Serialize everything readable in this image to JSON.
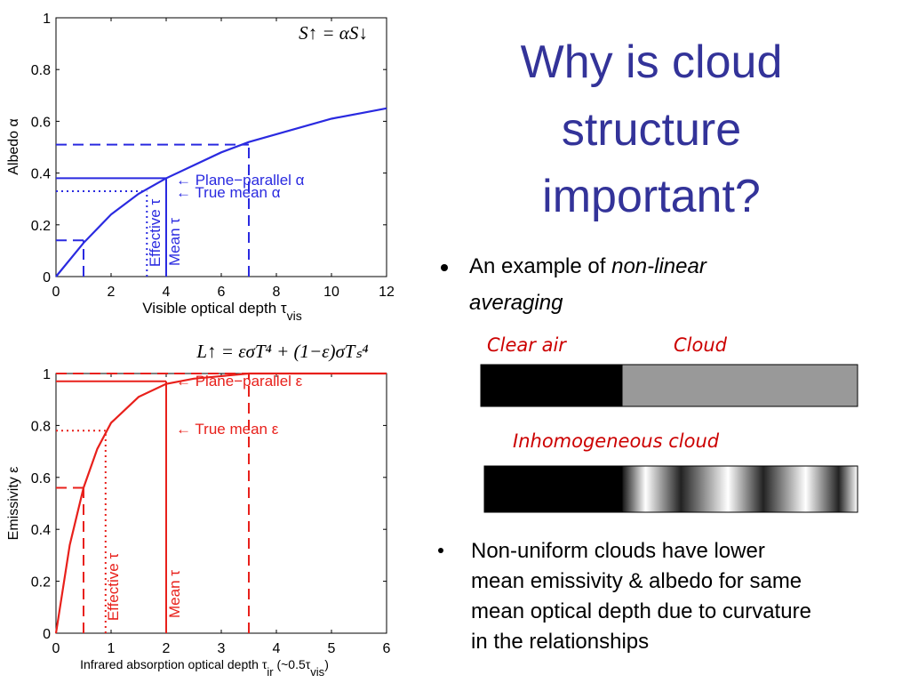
{
  "title": [
    "Why is cloud",
    "structure",
    "important?"
  ],
  "bullet1": {
    "plain": "An example of ",
    "italic": [
      "non-linear",
      "averaging"
    ]
  },
  "labels": {
    "clear": "Clear air",
    "cloud": "Cloud",
    "inhomogeneous": "Inhomogeneous cloud"
  },
  "bullet2": [
    "Non-uniform clouds have lower",
    "mean emissivity & albedo for same",
    "mean optical depth due to curvature",
    "in the relationships"
  ],
  "chart_data": [
    {
      "type": "line",
      "color": "#2a2ae0",
      "equation": "S↑ = αS↓",
      "ylabel": "Albedo α",
      "xlabel": [
        {
          "text": "Visible optical depth τ",
          "sub": false
        },
        {
          "text": "vis",
          "sub": true
        }
      ],
      "x": [
        0,
        1,
        2,
        3,
        4,
        5,
        6,
        7,
        8,
        9,
        10,
        11,
        12
      ],
      "values": [
        0,
        0.13,
        0.24,
        0.32,
        0.38,
        0.43,
        0.48,
        0.52,
        0.55,
        0.58,
        0.61,
        0.63,
        0.65
      ],
      "xlim": [
        0,
        12
      ],
      "ylim": [
        0,
        1
      ],
      "xticks": [
        0,
        2,
        4,
        6,
        8,
        10,
        12
      ],
      "yticks": [
        0,
        0.2,
        0.4,
        0.6,
        0.8,
        1
      ],
      "reference_lines": [
        {
          "x": 7,
          "y": 0.51,
          "style": "dashed"
        },
        {
          "x": 1,
          "y": 0.14,
          "style": "dashed"
        },
        {
          "x": 4,
          "y": 0.38,
          "style": "solid"
        },
        {
          "x": 3.3,
          "y": 0.33,
          "style": "dotted"
        }
      ],
      "annotations": [
        "← Plane−parallel α",
        "← True mean α",
        "Effective τ",
        "Mean τ"
      ]
    },
    {
      "type": "line",
      "color": "#e8201b",
      "equation": "L↑ = εσT⁴ + (1−ε)σTₛ⁴",
      "ylabel": "Emissivity ε",
      "xlabel": [
        {
          "text": "Infrared absorption optical depth  τ",
          "sub": false
        },
        {
          "text": "ir",
          "sub": true
        },
        {
          "text": " (~0.5τ",
          "sub": false
        },
        {
          "text": "vis",
          "sub": true
        },
        {
          "text": ")",
          "sub": false
        }
      ],
      "x": [
        0,
        0.25,
        0.5,
        0.75,
        1,
        1.5,
        2,
        2.5,
        3,
        3.5,
        4,
        5,
        6
      ],
      "values": [
        0,
        0.34,
        0.56,
        0.71,
        0.81,
        0.91,
        0.96,
        0.98,
        0.99,
        1,
        1,
        1,
        1
      ],
      "xlim": [
        0,
        6
      ],
      "ylim": [
        0,
        1
      ],
      "xticks": [
        0,
        1,
        2,
        3,
        4,
        5,
        6
      ],
      "yticks": [
        0,
        0.2,
        0.4,
        0.6,
        0.8,
        1
      ],
      "reference_lines": [
        {
          "x": 0.5,
          "y": 0.56,
          "style": "dashed"
        },
        {
          "x": 3.5,
          "y": 1,
          "style": "dashed"
        },
        {
          "x": 2,
          "y": 0.97,
          "style": "solid"
        },
        {
          "x": 0.9,
          "y": 0.78,
          "style": "dotted"
        }
      ],
      "annotations": [
        "← Plane−parallel ε",
        "← True mean ε",
        "Effective τ",
        "Mean τ"
      ]
    }
  ]
}
